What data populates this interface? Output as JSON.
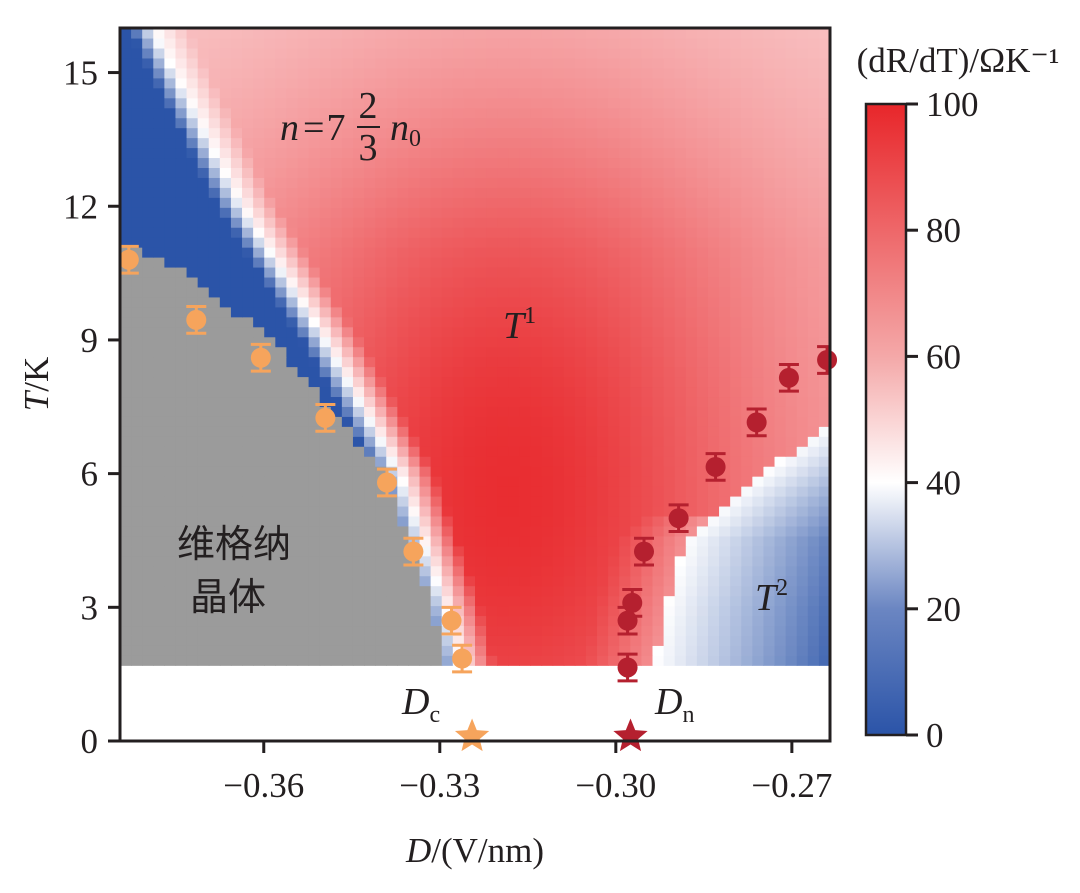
{
  "chart_data": {
    "type": "heatmap",
    "title": "",
    "xlabel": "D/(V/nm)",
    "ylabel": "T/K",
    "xlim": [
      -0.3845,
      -0.2635
    ],
    "ylim": [
      0,
      16
    ],
    "xticks": [
      -0.36,
      -0.33,
      -0.3,
      -0.27
    ],
    "xtick_labels": [
      "−0.36",
      "−0.33",
      "−0.30",
      "−0.27"
    ],
    "yticks": [
      0,
      3,
      6,
      9,
      12,
      15
    ],
    "ytick_labels": [
      "0",
      "3",
      "6",
      "9",
      "12",
      "15"
    ],
    "heatmap_T_min": 1.7,
    "colorbar": {
      "label": "(dR/dT)/ΩK⁻¹",
      "range": [
        0,
        100
      ],
      "ticks": [
        0,
        20,
        40,
        60,
        80,
        100
      ],
      "tick_labels": [
        "0",
        "20",
        "40",
        "60",
        "80",
        "100"
      ],
      "colors": [
        "#2b54a8",
        "#ffffff",
        "#e8262a"
      ]
    },
    "masked_region": {
      "label_line1": "维格纳",
      "label_line2": "晶体",
      "color": "#9b9b9b"
    },
    "series": [
      {
        "name": "Wigner crystal boundary",
        "color": "#f6a45c",
        "points": [
          {
            "x": -0.383,
            "y": 10.8,
            "err": 0.3
          },
          {
            "x": -0.3715,
            "y": 9.45,
            "err": 0.3
          },
          {
            "x": -0.3605,
            "y": 8.6,
            "err": 0.3
          },
          {
            "x": -0.3495,
            "y": 7.25,
            "err": 0.3
          },
          {
            "x": -0.339,
            "y": 5.8,
            "err": 0.3
          },
          {
            "x": -0.3345,
            "y": 4.25,
            "err": 0.3
          },
          {
            "x": -0.328,
            "y": 2.7,
            "err": 0.3
          },
          {
            "x": -0.3262,
            "y": 1.85,
            "err": 0.3
          }
        ]
      },
      {
        "name": "T2 boundary",
        "color": "#b5202f",
        "points": [
          {
            "x": -0.298,
            "y": 1.65,
            "err": 0.3
          },
          {
            "x": -0.298,
            "y": 2.7,
            "err": 0.3
          },
          {
            "x": -0.2972,
            "y": 3.1,
            "err": 0.3
          },
          {
            "x": -0.2952,
            "y": 4.25,
            "err": 0.3
          },
          {
            "x": -0.2893,
            "y": 5.0,
            "err": 0.3
          },
          {
            "x": -0.283,
            "y": 6.15,
            "err": 0.3
          },
          {
            "x": -0.276,
            "y": 7.15,
            "err": 0.3
          },
          {
            "x": -0.2705,
            "y": 8.15,
            "err": 0.3
          },
          {
            "x": -0.264,
            "y": 8.55,
            "err": 0.3
          }
        ]
      }
    ],
    "markers": [
      {
        "name": "Dc",
        "label_main": "D",
        "label_sub": "c",
        "x": -0.3245,
        "y": 0.1,
        "color": "#f6a45c",
        "shape": "star"
      },
      {
        "name": "Dn",
        "label_main": "D",
        "label_sub": "n",
        "x": -0.2975,
        "y": 0.1,
        "color": "#b5202f",
        "shape": "star"
      }
    ],
    "annotations": {
      "filling_n": "n",
      "filling_eq": "=",
      "filling_whole": "7",
      "filling_num": "2",
      "filling_den": "3",
      "filling_n0_main": "n",
      "filling_n0_sub": "0",
      "t1_main": "T",
      "t1_sup": "1",
      "t2_main": "T",
      "t2_sup": "2"
    }
  }
}
